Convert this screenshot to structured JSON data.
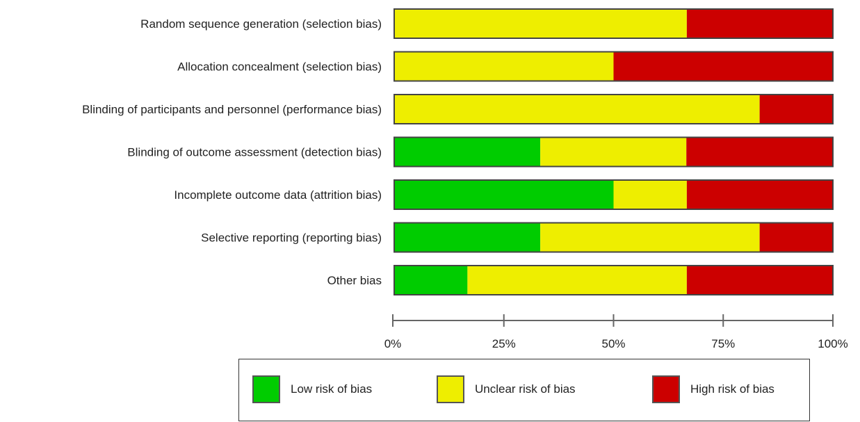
{
  "chart_data": {
    "type": "bar",
    "orientation": "horizontal",
    "stacked": true,
    "categories": [
      "Random sequence generation (selection bias)",
      "Allocation concealment (selection bias)",
      "Blinding of participants and personnel (performance bias)",
      "Blinding of outcome assessment (detection bias)",
      "Incomplete outcome data (attrition bias)",
      "Selective reporting (reporting bias)",
      "Other bias"
    ],
    "series": [
      {
        "name": "Low risk of bias",
        "color": "#00cc00",
        "values": [
          0,
          0,
          0,
          33.3,
          50,
          33.3,
          16.7
        ]
      },
      {
        "name": "Unclear risk of bias",
        "color": "#eeee00",
        "values": [
          66.7,
          50,
          83.3,
          33.3,
          16.7,
          50,
          50
        ]
      },
      {
        "name": "High risk of bias",
        "color": "#cc0000",
        "values": [
          33.3,
          50,
          16.7,
          33.3,
          33.3,
          16.7,
          33.3
        ]
      }
    ],
    "x_ticks": [
      "0%",
      "25%",
      "50%",
      "75%",
      "100%"
    ],
    "xlim": [
      0,
      100
    ],
    "grid": false,
    "legend_position": "bottom"
  }
}
